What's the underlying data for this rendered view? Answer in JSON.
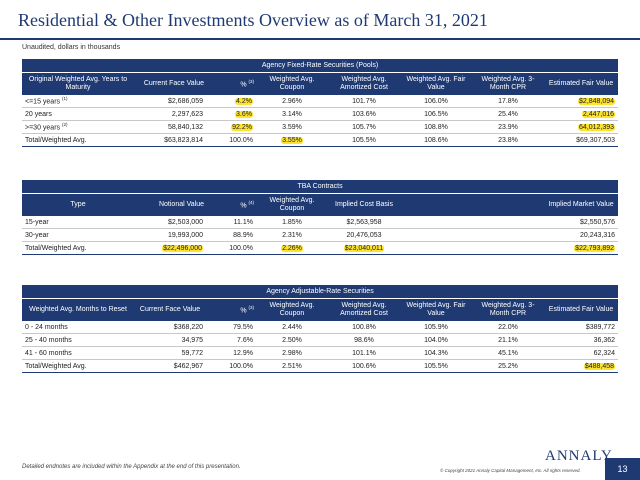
{
  "page": {
    "title": "Residential & Other Investments Overview as of March 31, 2021",
    "subtitle": "Unaudited, dollars in thousands",
    "footnote": "Detailed endnotes are included within the Appendix at the end of this presentation.",
    "copyright": "© Copyright 2021 Annaly Capital Management, Inc. All rights reserved.",
    "logo": "ANNALY",
    "page_number": "13",
    "accent_color": "#1f3a73",
    "highlight_color": "#fbe32e"
  },
  "fixed_rate": {
    "title": "Agency Fixed-Rate Securities (Pools)",
    "headers": [
      "Original Weighted Avg. Years to Maturity",
      "Current Face Value",
      "%",
      "Weighted Avg. Coupon",
      "Weighted Avg. Amortized Cost",
      "Weighted Avg. Fair Value",
      "Weighted Avg. 3-Month CPR",
      "Estimated Fair Value"
    ],
    "pct_note": "(3)",
    "rows": [
      {
        "label": "<=15 years",
        "note": "(1)",
        "face": "$2,686,059",
        "pct": "4.2%",
        "coupon": "2.96%",
        "amort": "101.7%",
        "fair": "106.0%",
        "cpr": "17.8%",
        "est": "$2,848,094"
      },
      {
        "label": "20 years",
        "note": "",
        "face": "2,297,623",
        "pct": "3.6%",
        "coupon": "3.14%",
        "amort": "103.6%",
        "fair": "106.5%",
        "cpr": "25.4%",
        "est": "2,447,016"
      },
      {
        "label": ">=30 years",
        "note": "(2)",
        "face": "58,840,132",
        "pct": "92.2%",
        "coupon": "3.59%",
        "amort": "105.7%",
        "fair": "108.8%",
        "cpr": "23.9%",
        "est": "64,012,393"
      }
    ],
    "total": {
      "label": "Total/Weighted Avg.",
      "face": "$63,823,814",
      "pct": "100.0%",
      "coupon": "3.55%",
      "amort": "105.5%",
      "fair": "108.6%",
      "cpr": "23.8%",
      "est": "$69,307,503"
    }
  },
  "tba": {
    "title": "TBA Contracts",
    "headers": [
      "Type",
      "Notional Value",
      "%",
      "Weighted Avg. Coupon",
      "Implied Cost Basis",
      "Implied Market Value"
    ],
    "pct_note": "(4)",
    "rows": [
      {
        "label": "15-year",
        "notional": "$2,503,000",
        "pct": "11.1%",
        "coupon": "1.85%",
        "cost": "$2,563,958",
        "market": "$2,550,576"
      },
      {
        "label": "30-year",
        "notional": "19,993,000",
        "pct": "88.9%",
        "coupon": "2.31%",
        "cost": "20,476,053",
        "market": "20,243,316"
      }
    ],
    "total": {
      "label": "Total/Weighted Avg.",
      "notional": "$22,496,000",
      "pct": "100.0%",
      "coupon": "2.26%",
      "cost": "$23,040,011",
      "market": "$22,793,892"
    }
  },
  "arm": {
    "title": "Agency Adjustable-Rate Securities",
    "headers": [
      "Weighted Avg. Months to Reset",
      "Current Face Value",
      "%",
      "Weighted Avg. Coupon",
      "Weighted Avg. Amortized Cost",
      "Weighted Avg. Fair Value",
      "Weighted Avg. 3-Month CPR",
      "Estimated Fair Value"
    ],
    "pct_note": "(3)",
    "rows": [
      {
        "label": "0 - 24 months",
        "face": "$368,220",
        "pct": "79.5%",
        "coupon": "2.44%",
        "amort": "100.8%",
        "fair": "105.9%",
        "cpr": "22.0%",
        "est": "$389,772"
      },
      {
        "label": "25 - 40 months",
        "face": "34,975",
        "pct": "7.6%",
        "coupon": "2.50%",
        "amort": "98.6%",
        "fair": "104.0%",
        "cpr": "21.1%",
        "est": "36,362"
      },
      {
        "label": "41 - 60 months",
        "face": "59,772",
        "pct": "12.9%",
        "coupon": "2.98%",
        "amort": "101.1%",
        "fair": "104.3%",
        "cpr": "45.1%",
        "est": "62,324"
      }
    ],
    "total": {
      "label": "Total/Weighted Avg.",
      "face": "$462,967",
      "pct": "100.0%",
      "coupon": "2.51%",
      "amort": "100.6%",
      "fair": "105.5%",
      "cpr": "25.2%",
      "est": "$488,458"
    }
  }
}
